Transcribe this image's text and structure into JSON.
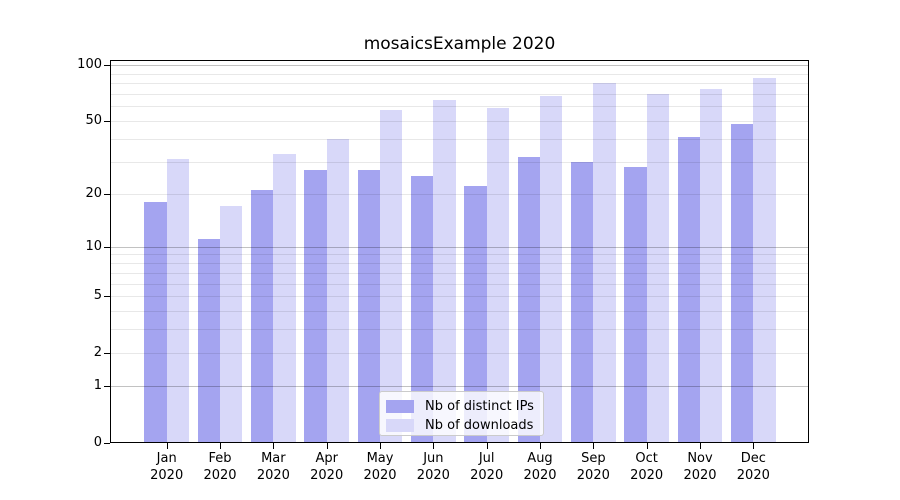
{
  "title": "mosaicsExample 2020",
  "colors": {
    "distinct_ips": "#a4a4f0",
    "downloads": "#d8d8f9",
    "axis": "#000000",
    "grid_minor": "#e8e8e8",
    "grid_major": "#c2c2c2",
    "legend_border": "#cbcbcb"
  },
  "legend": {
    "items": [
      {
        "label": "Nb of distinct IPs",
        "color": "#a4a4f0"
      },
      {
        "label": "Nb of downloads",
        "color": "#d8d8f9"
      }
    ]
  },
  "chart_data": {
    "type": "bar",
    "title": "mosaicsExample 2020",
    "scale": "log1p",
    "grid": true,
    "legend_position": "bottom-center",
    "year": "2020",
    "months": [
      "Jan",
      "Feb",
      "Mar",
      "Apr",
      "May",
      "Jun",
      "Jul",
      "Aug",
      "Sep",
      "Oct",
      "Nov",
      "Dec"
    ],
    "categories": [
      "Jan 2020",
      "Feb 2020",
      "Mar 2020",
      "Apr 2020",
      "May 2020",
      "Jun 2020",
      "Jul 2020",
      "Aug 2020",
      "Sep 2020",
      "Oct 2020",
      "Nov 2020",
      "Dec 2020"
    ],
    "series": [
      {
        "name": "Nb of distinct IPs",
        "color": "#a4a4f0",
        "values": [
          18,
          11,
          21,
          27,
          27,
          25,
          22,
          32,
          30,
          28,
          41,
          48
        ]
      },
      {
        "name": "Nb of downloads",
        "color": "#d8d8f9",
        "values": [
          31,
          17,
          33,
          40,
          57,
          65,
          59,
          68,
          80,
          70,
          74,
          85
        ]
      }
    ],
    "y_ticks": [
      0,
      1,
      2,
      5,
      10,
      20,
      50,
      100
    ],
    "y_minor_gridlines": [
      2,
      3,
      4,
      5,
      6,
      7,
      8,
      9,
      20,
      30,
      40,
      50,
      60,
      70,
      80,
      90
    ],
    "y_major_gridlines": [
      1,
      10,
      100
    ],
    "ylim": [
      0,
      107
    ],
    "xlabel": "",
    "ylabel": ""
  }
}
